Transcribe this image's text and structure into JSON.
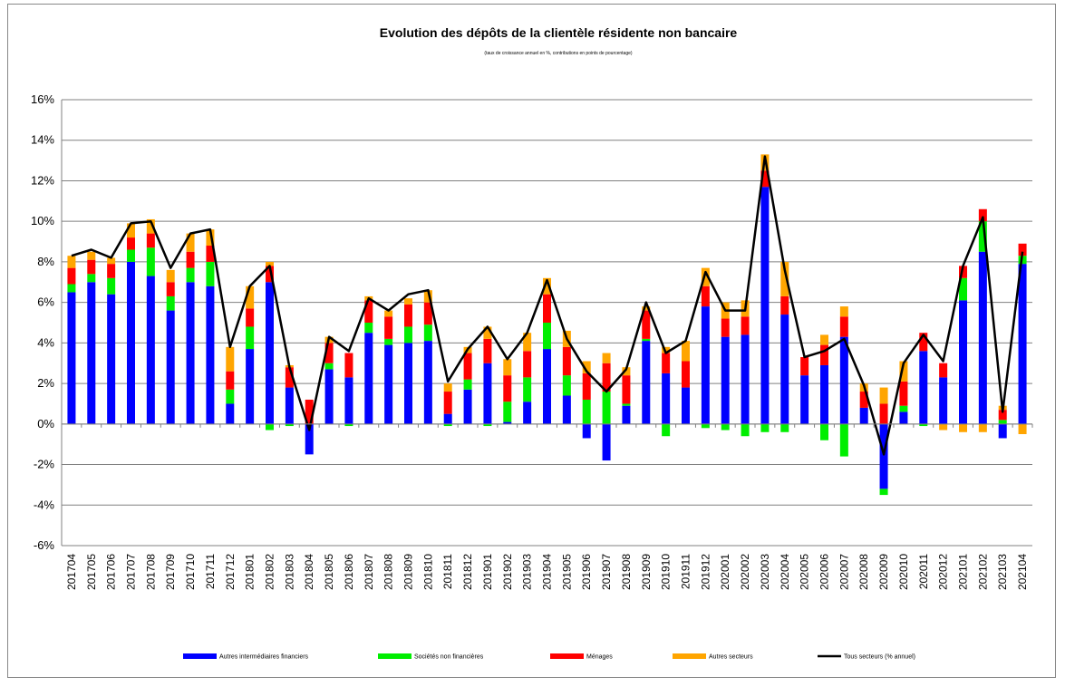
{
  "chart_data": {
    "type": "bar",
    "stacked": true,
    "title": "Evolution des dépôts de la clientèle résidente non bancaire",
    "subtitle": "(taux de croissance annuel en %, contributions en points de pourcentage)",
    "xlabel": "",
    "ylabel": "",
    "ylim": [
      -6,
      16
    ],
    "yticks": [
      "-6%",
      "-4%",
      "-2%",
      "0%",
      "2%",
      "4%",
      "6%",
      "8%",
      "10%",
      "12%",
      "14%",
      "16%"
    ],
    "ytick_values": [
      -6,
      -4,
      -2,
      0,
      2,
      4,
      6,
      8,
      10,
      12,
      14,
      16
    ],
    "grid": true,
    "legend_position": "bottom",
    "categories": [
      "201704",
      "201705",
      "201706",
      "201707",
      "201708",
      "201709",
      "201710",
      "201711",
      "201712",
      "201801",
      "201802",
      "201803",
      "201804",
      "201805",
      "201806",
      "201807",
      "201808",
      "201809",
      "201810",
      "201811",
      "201812",
      "201901",
      "201902",
      "201903",
      "201904",
      "201905",
      "201906",
      "201907",
      "201908",
      "201909",
      "201910",
      "201911",
      "201912",
      "202001",
      "202002",
      "202003",
      "202004",
      "202005",
      "202006",
      "202007",
      "202008",
      "202009",
      "202010",
      "202011",
      "202012",
      "202101",
      "202102",
      "202103",
      "202104"
    ],
    "series": [
      {
        "name": "Autres intermédiaires financiers",
        "color": "#0000ff",
        "kind": "bar",
        "values": [
          6.5,
          7.0,
          6.4,
          8.0,
          7.3,
          5.6,
          7.0,
          6.8,
          1.0,
          3.7,
          7.0,
          1.8,
          -1.5,
          2.7,
          2.3,
          4.5,
          3.9,
          4.0,
          4.1,
          0.5,
          1.7,
          3.0,
          0.1,
          1.1,
          3.7,
          1.4,
          -0.7,
          -1.8,
          0.9,
          4.1,
          2.5,
          1.8,
          5.8,
          4.3,
          4.4,
          11.7,
          5.4,
          2.4,
          2.9,
          4.3,
          0.8,
          -3.2,
          0.6,
          3.6,
          2.3,
          6.1,
          8.5,
          -0.7,
          7.9
        ]
      },
      {
        "name": "Sociétés non financières",
        "color": "#00ee00",
        "kind": "bar",
        "values": [
          0.4,
          0.4,
          0.8,
          0.6,
          1.4,
          0.7,
          0.7,
          1.2,
          0.7,
          1.1,
          -0.3,
          -0.1,
          0.0,
          0.3,
          -0.1,
          0.5,
          0.3,
          0.8,
          0.8,
          -0.1,
          0.5,
          -0.1,
          1.0,
          1.2,
          1.3,
          1.0,
          1.2,
          1.6,
          0.1,
          0.1,
          -0.6,
          0.0,
          -0.2,
          -0.3,
          -0.6,
          -0.4,
          -0.4,
          0.0,
          -0.8,
          -1.6,
          0.0,
          -0.3,
          0.3,
          -0.1,
          0.0,
          1.1,
          1.5,
          0.2,
          0.4
        ]
      },
      {
        "name": "Ménages",
        "color": "#ff0000",
        "kind": "bar",
        "values": [
          0.8,
          0.7,
          0.7,
          0.6,
          0.7,
          0.7,
          0.8,
          0.8,
          0.9,
          0.9,
          0.8,
          1.0,
          1.2,
          1.0,
          1.2,
          1.1,
          1.1,
          1.1,
          1.1,
          1.1,
          1.3,
          1.2,
          1.3,
          1.3,
          1.4,
          1.4,
          1.3,
          1.4,
          1.4,
          1.4,
          1.0,
          1.3,
          1.0,
          0.9,
          0.9,
          0.8,
          0.9,
          0.9,
          1.0,
          1.0,
          0.8,
          1.0,
          1.2,
          0.9,
          0.7,
          0.6,
          0.6,
          0.5,
          0.6
        ]
      },
      {
        "name": "Autres secteurs",
        "color": "#ffa500",
        "kind": "bar",
        "values": [
          0.6,
          0.4,
          0.3,
          0.7,
          0.7,
          0.6,
          0.9,
          0.8,
          1.2,
          1.1,
          0.2,
          0.1,
          0.0,
          0.3,
          0.0,
          0.2,
          0.3,
          0.3,
          0.6,
          0.4,
          0.3,
          0.6,
          0.8,
          0.9,
          0.8,
          0.8,
          0.6,
          0.5,
          0.4,
          0.2,
          0.3,
          1.0,
          0.9,
          0.8,
          0.8,
          0.8,
          1.7,
          0.0,
          0.5,
          0.5,
          0.4,
          0.8,
          1.0,
          0.0,
          -0.3,
          -0.4,
          -0.4,
          0.2,
          -0.5
        ]
      },
      {
        "name": "Tous secteurs (% annuel)",
        "color": "#000000",
        "kind": "line",
        "values": [
          8.3,
          8.6,
          8.2,
          9.9,
          10.0,
          7.7,
          9.4,
          9.6,
          3.8,
          6.8,
          7.8,
          2.8,
          -0.3,
          4.3,
          3.6,
          6.2,
          5.6,
          6.4,
          6.6,
          2.1,
          3.7,
          4.8,
          3.2,
          4.5,
          7.1,
          4.2,
          2.6,
          1.6,
          2.7,
          6.0,
          3.5,
          4.1,
          7.5,
          5.6,
          5.6,
          13.2,
          7.6,
          3.3,
          3.6,
          4.2,
          1.9,
          -1.5,
          3.0,
          4.4,
          3.1,
          7.8,
          10.2,
          0.6,
          8.5
        ]
      }
    ]
  }
}
